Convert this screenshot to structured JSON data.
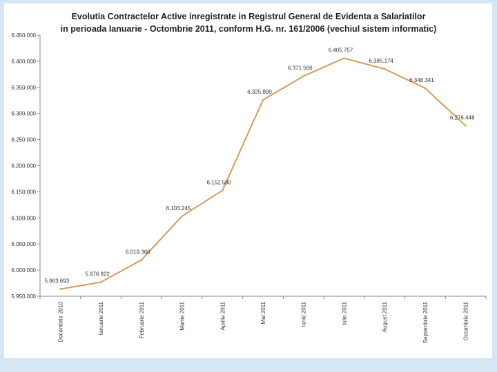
{
  "chart_data": {
    "type": "line",
    "title_lines": [
      "Evolutia Contractelor Active inregistrate in Registrul General de Evidenta a Salariatilor",
      "in perioada Ianuarie - Octombrie 2011, conform H.G. nr. 161/2006 (vechiul sistem informatic)"
    ],
    "categories": [
      "Decembrie 2010",
      "Ianuarie 2011",
      "Februarie 2011",
      "Martie 2011",
      "Aprilie 2011",
      "Mai 2011",
      "Iunie 2011",
      "Iulie 2011",
      "August 2011",
      "Septembrie 2011",
      "Octombrie 2011"
    ],
    "values": [
      5963693,
      5976922,
      6019360,
      6103245,
      6152580,
      6325890,
      6371566,
      6405757,
      6385174,
      6348341,
      6276448
    ],
    "value_labels": [
      "5.963.693",
      "5.976.922",
      "6.019.360",
      "6.103.245",
      "6.152.580",
      "6.325.890",
      "6.371.566",
      "6.405.757",
      "6.385.174",
      "6.348.341",
      "6.276.448"
    ],
    "y_ticks": [
      5950000,
      6000000,
      6050000,
      6100000,
      6150000,
      6200000,
      6250000,
      6300000,
      6350000,
      6400000,
      6450000
    ],
    "y_tick_labels": [
      "5.950.000",
      "6.000.000",
      "6.050.000",
      "6.100.000",
      "6.150.000",
      "6.200.000",
      "6.250.000",
      "6.300.000",
      "6.350.000",
      "6.400.000",
      "6.450.000"
    ],
    "ylim": [
      5950000,
      6450000
    ],
    "xlabel": "",
    "ylabel": "",
    "grid": false,
    "legend": "none",
    "line_color": "#d89a5a",
    "axis_color": "#888888"
  }
}
